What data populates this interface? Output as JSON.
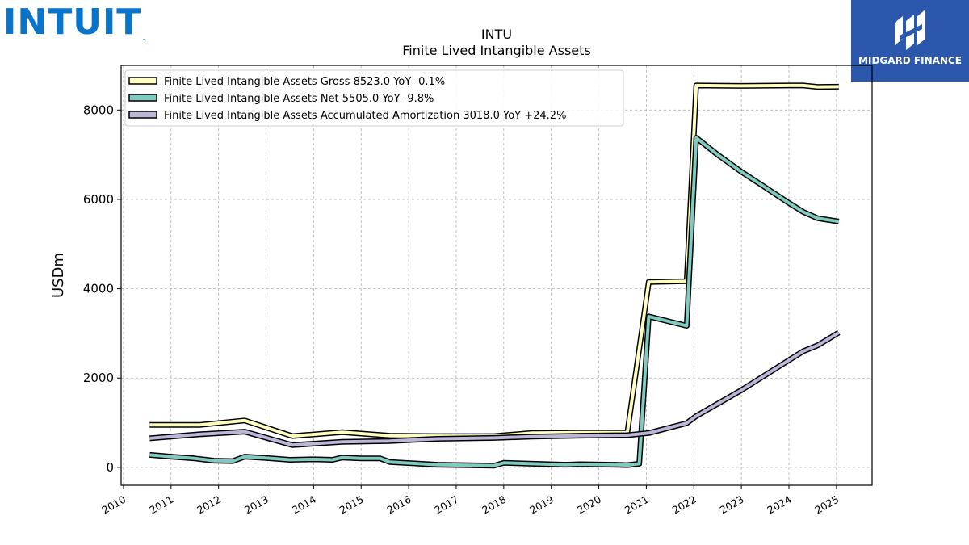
{
  "logos": {
    "left_text": "INTUIT",
    "left_mark": ".",
    "left_color": "#0a74c9",
    "right_text": "MIDGARD FINANCE",
    "right_bg": "#2b58ac"
  },
  "chart_data": {
    "type": "line",
    "title": "INTU",
    "subtitle": "Finite Lived Intangible Assets",
    "ylabel": "USDm",
    "xlabel": "",
    "xlim": [
      2009.95,
      2025.75
    ],
    "ylim": [
      -400,
      9000
    ],
    "yticks": [
      0,
      2000,
      4000,
      6000,
      8000
    ],
    "xticks": [
      "2010",
      "2011",
      "2012",
      "2013",
      "2014",
      "2015",
      "2016",
      "2017",
      "2018",
      "2019",
      "2020",
      "2021",
      "2022",
      "2023",
      "2024",
      "2025"
    ],
    "grid": true,
    "legend_position": "top-left",
    "series": [
      {
        "name": "Finite Lived Intangible Assets Gross  8523.0 YoY -0.1%",
        "color": "#ffffbf",
        "points": [
          [
            2010.55,
            950
          ],
          [
            2011.6,
            950
          ],
          [
            2012.55,
            1050
          ],
          [
            2013.55,
            700
          ],
          [
            2014.6,
            790
          ],
          [
            2015.6,
            710
          ],
          [
            2016.6,
            700
          ],
          [
            2017.8,
            700
          ],
          [
            2018.6,
            770
          ],
          [
            2019.6,
            780
          ],
          [
            2020.6,
            780
          ],
          [
            2021.05,
            4150
          ],
          [
            2021.85,
            4170
          ],
          [
            2022.05,
            8550
          ],
          [
            2023.0,
            8540
          ],
          [
            2024.0,
            8550
          ],
          [
            2024.3,
            8550
          ],
          [
            2024.6,
            8520
          ],
          [
            2025.05,
            8523
          ]
        ]
      },
      {
        "name": "Finite Lived Intangible Assets Net  5505.0 YoY -9.8%",
        "color": "#80cbc0",
        "points": [
          [
            2010.55,
            280
          ],
          [
            2011.0,
            240
          ],
          [
            2011.5,
            200
          ],
          [
            2011.9,
            150
          ],
          [
            2012.3,
            140
          ],
          [
            2012.55,
            240
          ],
          [
            2013.0,
            210
          ],
          [
            2013.5,
            170
          ],
          [
            2014.0,
            180
          ],
          [
            2014.4,
            170
          ],
          [
            2014.6,
            220
          ],
          [
            2015.0,
            200
          ],
          [
            2015.4,
            200
          ],
          [
            2015.6,
            120
          ],
          [
            2016.6,
            60
          ],
          [
            2017.8,
            40
          ],
          [
            2018.0,
            100
          ],
          [
            2018.6,
            80
          ],
          [
            2019.3,
            60
          ],
          [
            2019.6,
            70
          ],
          [
            2020.3,
            60
          ],
          [
            2020.6,
            50
          ],
          [
            2020.85,
            80
          ],
          [
            2021.05,
            3380
          ],
          [
            2021.85,
            3170
          ],
          [
            2022.05,
            7380
          ],
          [
            2022.5,
            7000
          ],
          [
            2023.0,
            6620
          ],
          [
            2023.5,
            6270
          ],
          [
            2024.0,
            5920
          ],
          [
            2024.3,
            5720
          ],
          [
            2024.6,
            5580
          ],
          [
            2025.05,
            5505
          ]
        ]
      },
      {
        "name": "Finite Lived Intangible Assets Accumulated Amortization  3018.0 YoY +24.2%",
        "color": "#bcb6d8",
        "points": [
          [
            2010.55,
            650
          ],
          [
            2011.6,
            740
          ],
          [
            2012.55,
            800
          ],
          [
            2013.55,
            500
          ],
          [
            2014.6,
            570
          ],
          [
            2015.6,
            590
          ],
          [
            2016.6,
            640
          ],
          [
            2017.8,
            660
          ],
          [
            2018.6,
            690
          ],
          [
            2019.6,
            710
          ],
          [
            2020.6,
            720
          ],
          [
            2021.05,
            770
          ],
          [
            2021.85,
            990
          ],
          [
            2022.05,
            1150
          ],
          [
            2023.0,
            1730
          ],
          [
            2024.0,
            2400
          ],
          [
            2024.3,
            2600
          ],
          [
            2024.6,
            2730
          ],
          [
            2025.05,
            3018
          ]
        ]
      }
    ]
  }
}
